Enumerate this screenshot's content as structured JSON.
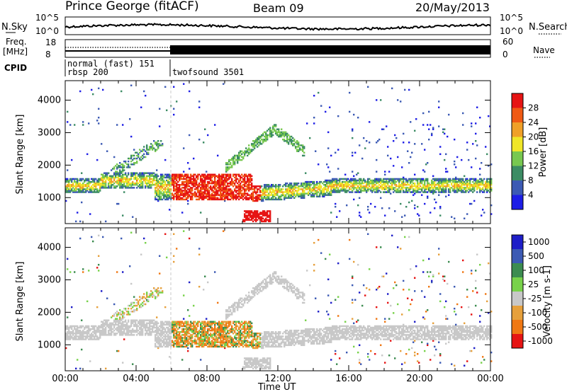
{
  "header": {
    "station": "Prince George (fitACF)",
    "beam": "Beam 09",
    "date": "20/May/2013"
  },
  "top_panel": {
    "left_label": "N.Sky",
    "right_label": "N.Search",
    "left_ticks": [
      "10^5",
      "10^0"
    ],
    "right_ticks": [
      "10^5",
      "10^0"
    ]
  },
  "freq_panel": {
    "left_label_1": "Freq.",
    "left_label_2": "[MHz]",
    "left_ticks": [
      "18",
      "8"
    ],
    "right_ticks": [
      "60",
      "0"
    ],
    "right_label": "Nave"
  },
  "cpid": {
    "label": "CPID",
    "mode_1": "normal (fast) 151",
    "mode_2": "rbsp 200",
    "mode_3": "twofsound 3501"
  },
  "colors": {
    "power": [
      "#1e1ee6",
      "#3c5ab4",
      "#3c8c64",
      "#78c850",
      "#f0e628",
      "#f0a028",
      "#f05a14",
      "#e61414"
    ],
    "velocity": [
      "#1e1ec8",
      "#3c5ab4",
      "#3c8c50",
      "#78d24a",
      "#c8c8c8",
      "#e6a03c",
      "#f07814",
      "#e61414"
    ]
  },
  "chart_data": [
    {
      "type": "heatmap",
      "name": "power",
      "ylabel": "Slant Range [km]",
      "y_ticks": [
        "1000",
        "2000",
        "3000",
        "4000"
      ],
      "y_tick_values": [
        1000,
        2000,
        3000,
        4000
      ],
      "ylim": [
        200,
        4600
      ],
      "xlim_hours": [
        0,
        24
      ],
      "colorbar_label": "Power [dB]",
      "colorbar_ticks": [
        "4",
        "8",
        "12",
        "16",
        "20",
        "24",
        "28"
      ],
      "colorbar_range": [
        0,
        32
      ]
    },
    {
      "type": "heatmap",
      "name": "velocity",
      "ylabel": "Slant Range [km]",
      "y_ticks": [
        "1000",
        "2000",
        "3000",
        "4000"
      ],
      "y_tick_values": [
        1000,
        2000,
        3000,
        4000
      ],
      "ylim": [
        200,
        4600
      ],
      "xlim_hours": [
        0,
        24
      ],
      "xlabel": "Time UT",
      "x_ticks": [
        "00:00",
        "04:00",
        "08:00",
        "12:00",
        "16:00",
        "20:00",
        "00:00"
      ],
      "colorbar_label": "Velocity [m s-1]",
      "colorbar_ticks": [
        "1000",
        "500",
        "100",
        "25",
        "-25",
        "-100",
        "-500",
        "-1000"
      ]
    }
  ]
}
